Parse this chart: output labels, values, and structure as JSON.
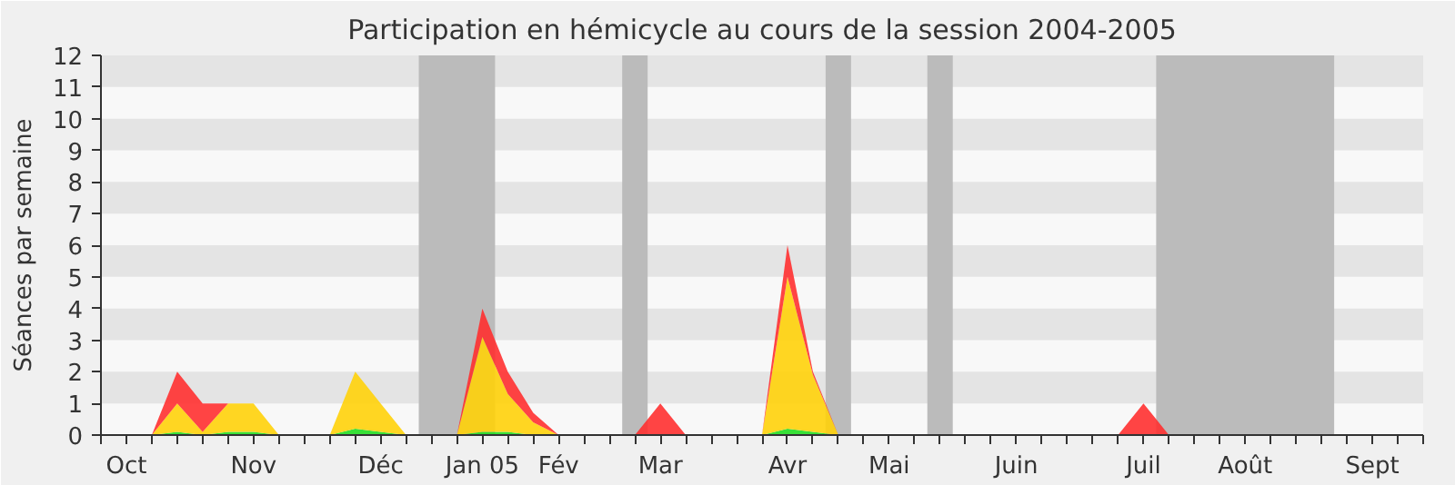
{
  "chart_data": {
    "type": "area",
    "stacked": true,
    "title": "Participation en hémicycle au cours de la session 2004-2005",
    "ylabel": "Séances par semaine",
    "categories": [
      null,
      "Oct",
      null,
      null,
      null,
      null,
      "Nov",
      null,
      null,
      null,
      null,
      "Déc",
      null,
      null,
      null,
      "Jan 05",
      null,
      null,
      "Fév",
      null,
      null,
      null,
      "Mar",
      null,
      null,
      null,
      null,
      "Avr",
      null,
      null,
      null,
      "Mai",
      null,
      null,
      null,
      null,
      "Juin",
      null,
      null,
      null,
      null,
      "Juil",
      null,
      null,
      null,
      "Août",
      null,
      null,
      null,
      null,
      "Sept",
      null,
      null
    ],
    "series": [
      {
        "color": "#22dd22",
        "values": [
          0,
          0,
          0,
          0.1,
          0,
          0.1,
          0.1,
          0,
          0,
          0,
          0.2,
          0.1,
          0,
          0,
          0,
          0.1,
          0.1,
          0,
          0,
          0,
          0,
          0,
          0,
          0,
          0,
          0,
          0,
          0.2,
          0.1,
          0,
          0,
          0,
          0,
          0,
          0,
          0,
          0,
          0,
          0,
          0,
          0,
          0,
          0,
          0,
          0,
          0,
          0,
          0,
          0,
          0,
          0,
          0,
          0
        ]
      },
      {
        "color": "#ffd20a",
        "values": [
          0,
          0,
          0,
          0.9,
          0.1,
          0.9,
          0.9,
          0,
          0,
          0,
          1.8,
          0.9,
          0,
          0,
          0,
          3.0,
          1.2,
          0.4,
          0,
          0,
          0,
          0,
          0,
          0,
          0,
          0,
          0,
          4.8,
          1.8,
          0,
          0,
          0,
          0,
          0,
          0,
          0,
          0,
          0,
          0,
          0,
          0,
          0,
          0,
          0,
          0,
          0,
          0,
          0,
          0,
          0,
          0,
          0,
          0
        ]
      },
      {
        "color": "#ff3030",
        "values": [
          0,
          0,
          0,
          1,
          0.9,
          0,
          0,
          0,
          0,
          0,
          0,
          0,
          0,
          0,
          0,
          0.9,
          0.7,
          0.3,
          0,
          0,
          0,
          0,
          1,
          0,
          0,
          0,
          0,
          1,
          0.1,
          0,
          0,
          0,
          0,
          0,
          0,
          0,
          0,
          0,
          0,
          0,
          0,
          1,
          0,
          0,
          0,
          0,
          0,
          0,
          0,
          0,
          0,
          0,
          0
        ]
      }
    ],
    "ylim": [
      0,
      12
    ],
    "yticks": [
      0,
      1,
      2,
      3,
      4,
      5,
      6,
      7,
      8,
      9,
      10,
      11,
      12
    ]
  }
}
